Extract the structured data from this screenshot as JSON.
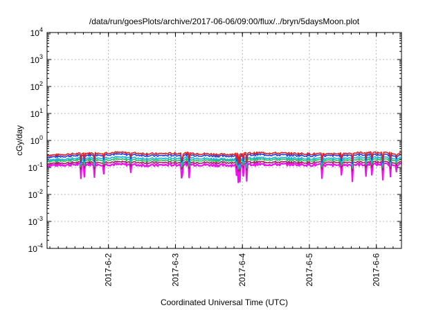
{
  "chart_data": {
    "type": "line",
    "title": "/data/run/goesPlots/archive/2017-06-06/09:00/flux/../bryn/5daysMoon.plot",
    "xlabel": "Coordinated Universal Time (UTC)",
    "ylabel": "cGy/day",
    "yscale": "log",
    "ylim": [
      0.0001,
      10000
    ],
    "y_ticks": [
      {
        "base": "10",
        "exp": "-4",
        "value": 0.0001
      },
      {
        "base": "10",
        "exp": "-3",
        "value": 0.001
      },
      {
        "base": "10",
        "exp": "-2",
        "value": 0.01
      },
      {
        "base": "10",
        "exp": "-1",
        "value": 0.1
      },
      {
        "base": "10",
        "exp": "0",
        "value": 1
      },
      {
        "base": "10",
        "exp": "1",
        "value": 10
      },
      {
        "base": "10",
        "exp": "2",
        "value": 100
      },
      {
        "base": "10",
        "exp": "3",
        "value": 1000
      },
      {
        "base": "10",
        "exp": "4",
        "value": 10000
      }
    ],
    "xlim": [
      "2017-06-01T02:00",
      "2017-06-06T09:00"
    ],
    "x_ticks": [
      "2017-6-2",
      "2017-6-3",
      "2017-6-4",
      "2017-6-5",
      "2017-6-6"
    ],
    "grid": true,
    "legend": "none",
    "series": [
      {
        "color": "#e02020",
        "level": 0.33,
        "values_approx": [
          0.28,
          0.33,
          0.36,
          0.32,
          0.34,
          0.3,
          0.35,
          0.33,
          0.31,
          0.36,
          0.33
        ]
      },
      {
        "color": "#2040e0",
        "level": 0.28,
        "values_approx": [
          0.24,
          0.28,
          0.31,
          0.27,
          0.29,
          0.26,
          0.3,
          0.28,
          0.27,
          0.3,
          0.28
        ]
      },
      {
        "color": "#20b0e0",
        "level": 0.22,
        "values_approx": [
          0.19,
          0.22,
          0.24,
          0.21,
          0.23,
          0.2,
          0.23,
          0.22,
          0.21,
          0.24,
          0.22
        ]
      },
      {
        "color": "#20c060",
        "level": 0.19,
        "values_approx": [
          0.17,
          0.19,
          0.2,
          0.18,
          0.19,
          0.18,
          0.2,
          0.19,
          0.18,
          0.2,
          0.19
        ]
      },
      {
        "color": "#a02060",
        "level": 0.155,
        "values_approx": [
          0.14,
          0.155,
          0.16,
          0.15,
          0.155,
          0.15,
          0.16,
          0.155,
          0.15,
          0.16,
          0.155
        ]
      },
      {
        "color": "#ee10ee",
        "level": 0.13,
        "values_approx": [
          0.12,
          0.13,
          0.13,
          0.12,
          0.13,
          0.12,
          0.13,
          0.13,
          0.12,
          0.13,
          0.13
        ]
      }
    ]
  }
}
